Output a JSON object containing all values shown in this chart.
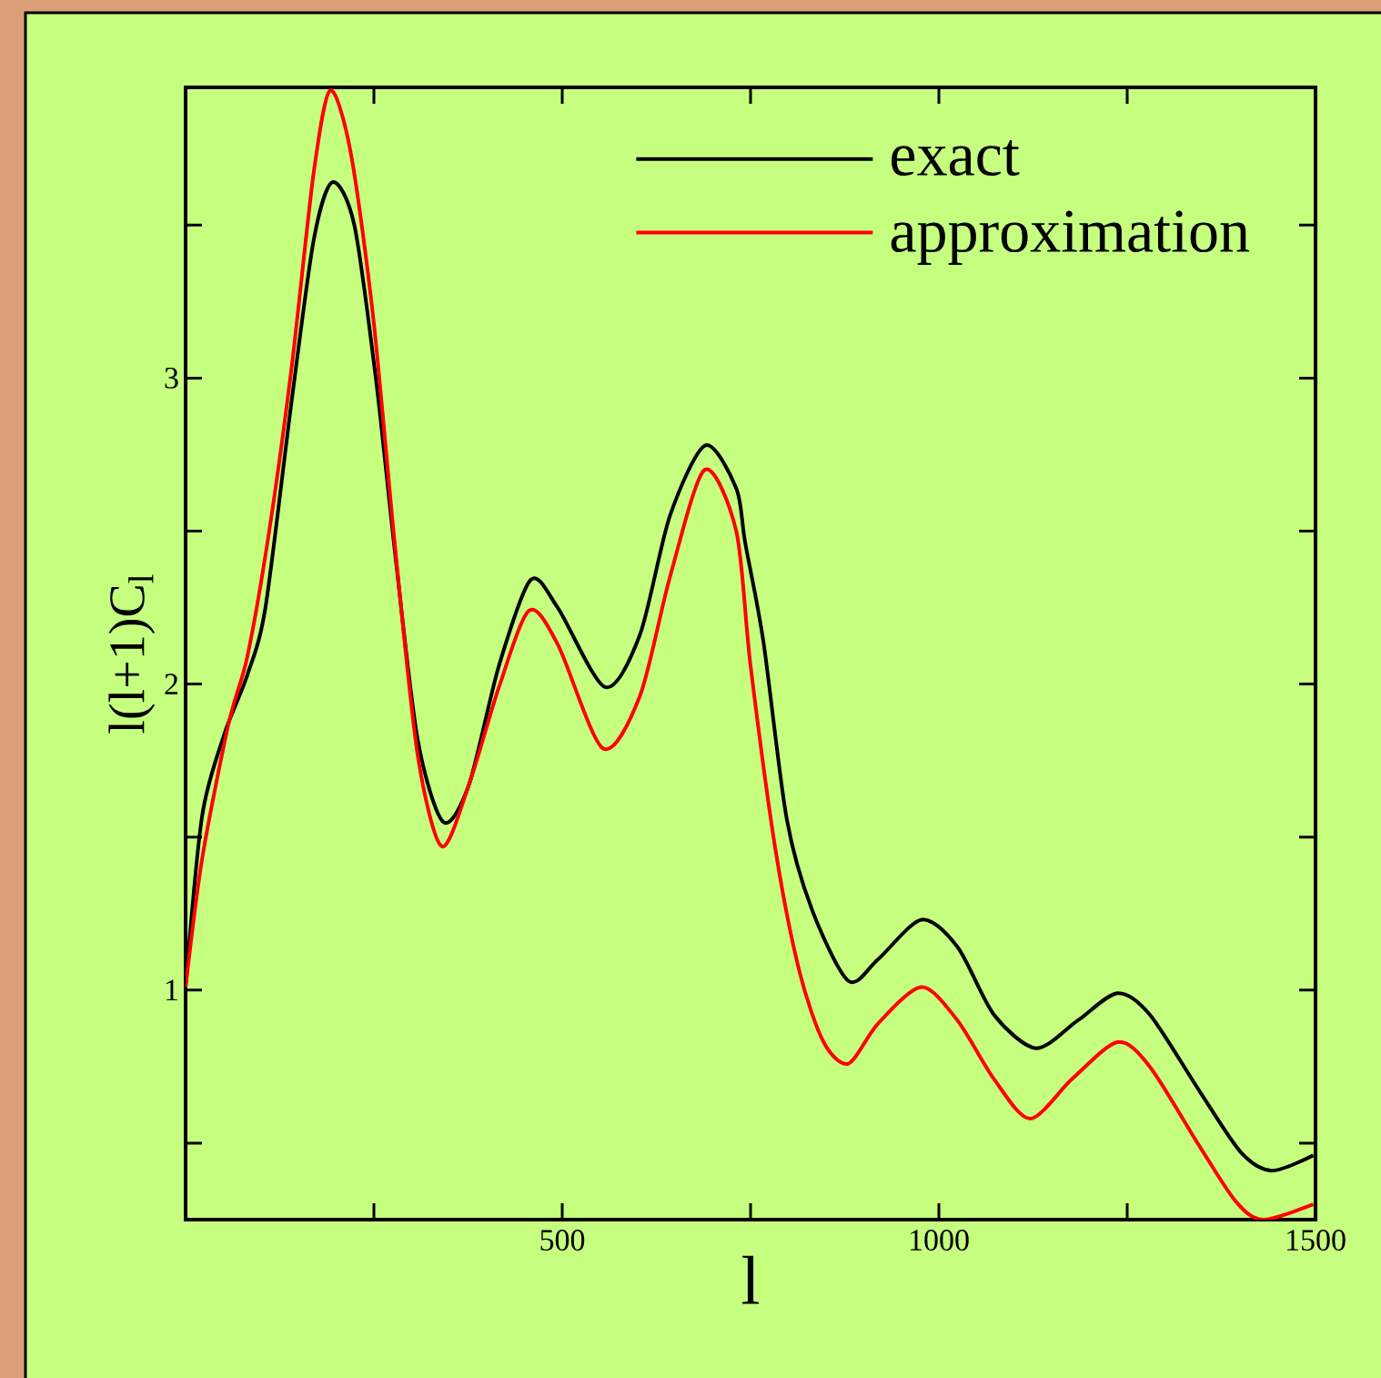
{
  "chart_data": {
    "type": "line",
    "xlabel": "l",
    "ylabel": "l(l+1)C$_{l}$",
    "xlim": [
      0,
      1500
    ],
    "ylim": [
      0.25,
      3.95
    ],
    "xticks": [
      {
        "value": 250,
        "label": null
      },
      500,
      {
        "value": 750,
        "label": null
      },
      1000,
      {
        "value": 1250,
        "label": null
      },
      1500
    ],
    "yticks": [
      {
        "value": 0.5,
        "label": null
      },
      1,
      {
        "value": 1.5,
        "label": null
      },
      2,
      {
        "value": 2.5,
        "label": null
      },
      3,
      {
        "value": 3.5,
        "label": null
      }
    ],
    "legend": "top right",
    "grid": false,
    "marker": "none",
    "line_style": "solid",
    "series": [
      {
        "name": "exact",
        "color": "#000000",
        "x": [
          0,
          22,
          52,
          82,
          106,
          140,
          170,
          195,
          224,
          253,
          278,
          308,
          342,
          376,
          416,
          458,
          494,
          557,
          603,
          643,
          690,
          731,
          743,
          767,
          798,
          832,
          880,
          919,
          977,
          1025,
          1073,
          1129,
          1184,
          1237,
          1280,
          1346,
          1401,
          1442,
          1497
        ],
        "values": [
          1.01,
          1.57,
          1.84,
          2.03,
          2.25,
          2.91,
          3.45,
          3.64,
          3.5,
          2.99,
          2.43,
          1.82,
          1.55,
          1.67,
          2.06,
          2.34,
          2.25,
          1.99,
          2.16,
          2.55,
          2.78,
          2.64,
          2.46,
          2.14,
          1.56,
          1.26,
          1.03,
          1.1,
          1.23,
          1.14,
          0.92,
          0.81,
          0.9,
          0.99,
          0.92,
          0.67,
          0.47,
          0.41,
          0.46
        ]
      },
      {
        "name": "approximation",
        "color": "#ff0000",
        "x": [
          0,
          22,
          57,
          82,
          111,
          141,
          170,
          192,
          219,
          249,
          278,
          308,
          340,
          376,
          416,
          456,
          494,
          554,
          603,
          643,
          689,
          731,
          750,
          783,
          815,
          847,
          880,
          919,
          977,
          1025,
          1073,
          1121,
          1177,
          1237,
          1280,
          1346,
          1394,
          1430,
          1497
        ],
        "values": [
          1.01,
          1.43,
          1.87,
          2.09,
          2.5,
          3.04,
          3.67,
          3.94,
          3.74,
          3.2,
          2.45,
          1.77,
          1.47,
          1.67,
          1.99,
          2.24,
          2.13,
          1.79,
          1.96,
          2.35,
          2.7,
          2.5,
          2.06,
          1.46,
          1.06,
          0.83,
          0.76,
          0.89,
          1.01,
          0.9,
          0.71,
          0.58,
          0.71,
          0.83,
          0.75,
          0.49,
          0.31,
          0.25,
          0.3
        ]
      }
    ]
  }
}
